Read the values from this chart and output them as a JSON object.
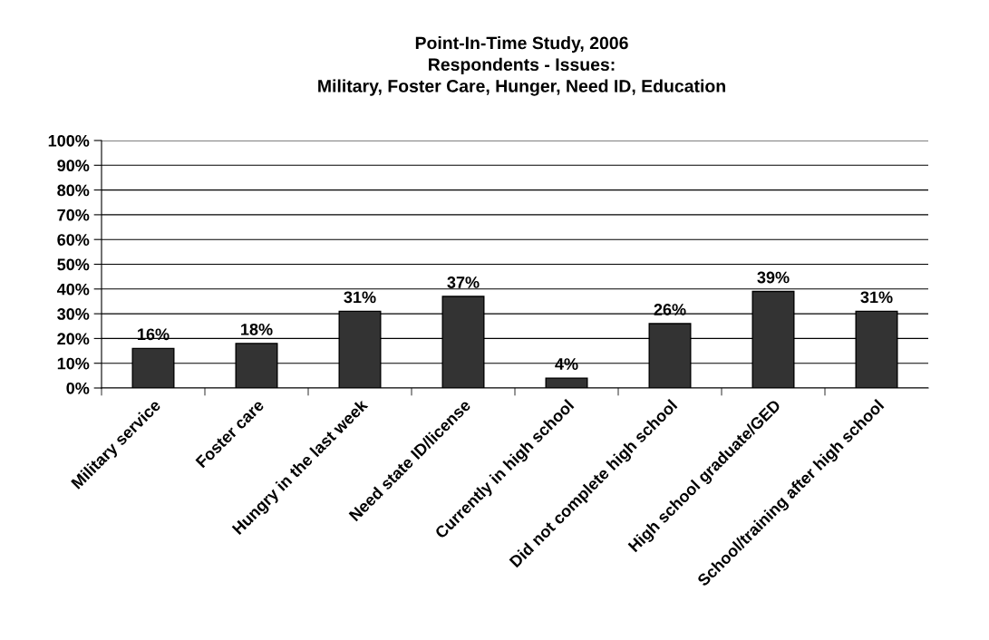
{
  "chart_data": {
    "type": "bar",
    "title": "Point-In-Time Study, 2006\nRespondents - Issues:\nMilitary, Foster Care, Hunger, Need ID, Education",
    "categories": [
      "Military service",
      "Foster care",
      "Hungry in the last week",
      "Need state ID/license",
      "Currently in high school",
      "Did not complete high school",
      "High school graduate/GED",
      "School/training after high school"
    ],
    "values": [
      16,
      18,
      31,
      37,
      4,
      26,
      39,
      31
    ],
    "value_labels": [
      "16%",
      "18%",
      "31%",
      "37%",
      "4%",
      "26%",
      "39%",
      "31%"
    ],
    "color": "#333333",
    "ylim": [
      0,
      100
    ],
    "yticks": [
      {
        "value": 0,
        "label": "0%"
      },
      {
        "value": 10,
        "label": "10%"
      },
      {
        "value": 20,
        "label": "20%"
      },
      {
        "value": 30,
        "label": "30%"
      },
      {
        "value": 40,
        "label": "40%"
      },
      {
        "value": 50,
        "label": "50%"
      },
      {
        "value": 60,
        "label": "60%"
      },
      {
        "value": 70,
        "label": "70%"
      },
      {
        "value": 80,
        "label": "80%"
      },
      {
        "value": 90,
        "label": "90%"
      },
      {
        "value": 100,
        "label": "100%"
      }
    ],
    "grid": "y",
    "legend": false
  }
}
